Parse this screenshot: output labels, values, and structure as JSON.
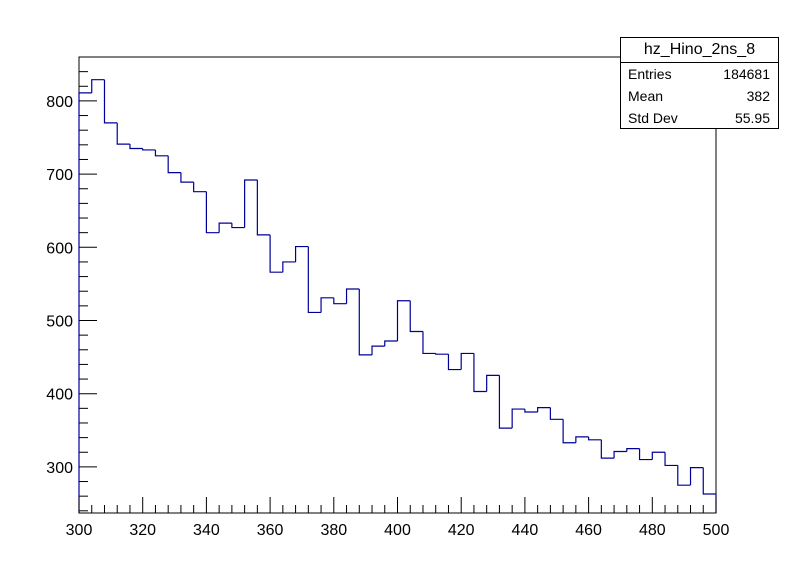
{
  "chart_data": {
    "type": "histogram",
    "title": "",
    "xlabel": "",
    "ylabel": "",
    "xlim": [
      300,
      500
    ],
    "ylim": [
      237,
      860
    ],
    "x_ticks": [
      300,
      320,
      340,
      360,
      380,
      400,
      420,
      440,
      460,
      480,
      500
    ],
    "y_ticks": [
      300,
      400,
      500,
      600,
      700,
      800
    ],
    "bin_edges": [
      300,
      304,
      308,
      312,
      316,
      320,
      324,
      328,
      332,
      336,
      340,
      344,
      348,
      352,
      356,
      360,
      364,
      368,
      372,
      376,
      380,
      384,
      388,
      392,
      396,
      400,
      404,
      408,
      412,
      416,
      420,
      424,
      428,
      432,
      436,
      440,
      444,
      448,
      452,
      456,
      460,
      464,
      468,
      472,
      476,
      480,
      484,
      488,
      492,
      496,
      500
    ],
    "values": [
      811,
      829,
      770,
      741,
      735,
      733,
      725,
      702,
      689,
      676,
      620,
      633,
      627,
      692,
      617,
      566,
      580,
      601,
      511,
      531,
      523,
      543,
      453,
      465,
      472,
      527,
      485,
      455,
      454,
      433,
      455,
      403,
      425,
      353,
      379,
      375,
      381,
      365,
      333,
      341,
      337,
      312,
      321,
      325,
      310,
      320,
      302,
      275,
      299,
      263
    ],
    "line_color": "#000099",
    "grid": false
  },
  "stats": {
    "name": "hz_Hino_2ns_8",
    "rows": [
      {
        "label": "Entries",
        "value": "184681"
      },
      {
        "label": "Mean",
        "value": "382"
      },
      {
        "label": "Std Dev",
        "value": "55.95"
      }
    ]
  }
}
